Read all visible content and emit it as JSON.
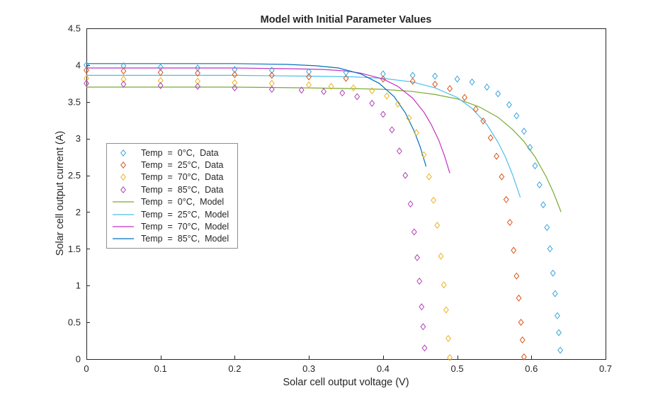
{
  "figure": {
    "title": "Model with Initial Parameter Values",
    "xlabel": "Solar cell output voltage (V)",
    "ylabel": "Solar cell output current (A)"
  },
  "chart_data": {
    "type": "scatter",
    "title": "Model with Initial Parameter Values",
    "xlabel": "Solar cell output voltage (V)",
    "ylabel": "Solar cell output current (A)",
    "xlim": [
      0,
      0.7
    ],
    "ylim": [
      0,
      4.5
    ],
    "x_ticks": [
      0,
      0.1,
      0.2,
      0.3,
      0.4,
      0.5,
      0.6,
      0.7
    ],
    "x_tick_labels": [
      "0",
      "0.1",
      "0.2",
      "0.3",
      "0.4",
      "0.5",
      "0.6",
      "0.7"
    ],
    "y_ticks": [
      0,
      0.5,
      1,
      1.5,
      2,
      2.5,
      3,
      3.5,
      4,
      4.5
    ],
    "y_tick_labels": [
      "0",
      "0.5",
      "1",
      "1.5",
      "2",
      "2.5",
      "3",
      "3.5",
      "4",
      "4.5"
    ],
    "grid": false,
    "axis_color": "#262626",
    "background_color": "#ffffff",
    "legend_position": "west-inside",
    "series": [
      {
        "id": "data-0c",
        "name": "Temp  =  0°C,  Data",
        "type": "scatter",
        "marker": "diamond",
        "color": "#39a3dc",
        "points": [
          [
            0,
            4.0
          ],
          [
            0.05,
            3.99
          ],
          [
            0.1,
            3.97
          ],
          [
            0.15,
            3.96
          ],
          [
            0.2,
            3.94
          ],
          [
            0.25,
            3.93
          ],
          [
            0.3,
            3.91
          ],
          [
            0.35,
            3.9
          ],
          [
            0.4,
            3.88
          ],
          [
            0.44,
            3.86
          ],
          [
            0.47,
            3.85
          ],
          [
            0.5,
            3.81
          ],
          [
            0.52,
            3.77
          ],
          [
            0.54,
            3.7
          ],
          [
            0.555,
            3.61
          ],
          [
            0.57,
            3.46
          ],
          [
            0.58,
            3.31
          ],
          [
            0.59,
            3.1
          ],
          [
            0.598,
            2.88
          ],
          [
            0.605,
            2.63
          ],
          [
            0.611,
            2.37
          ],
          [
            0.616,
            2.1
          ],
          [
            0.621,
            1.79
          ],
          [
            0.625,
            1.5
          ],
          [
            0.629,
            1.17
          ],
          [
            0.632,
            0.89
          ],
          [
            0.635,
            0.59
          ],
          [
            0.637,
            0.36
          ],
          [
            0.639,
            0.12
          ]
        ]
      },
      {
        "id": "data-25c",
        "name": "Temp  =  25°C,  Data",
        "type": "scatter",
        "marker": "diamond",
        "color": "#d95319",
        "points": [
          [
            0,
            3.93
          ],
          [
            0.05,
            3.92
          ],
          [
            0.1,
            3.9
          ],
          [
            0.15,
            3.89
          ],
          [
            0.2,
            3.87
          ],
          [
            0.25,
            3.86
          ],
          [
            0.3,
            3.84
          ],
          [
            0.35,
            3.82
          ],
          [
            0.4,
            3.81
          ],
          [
            0.44,
            3.78
          ],
          [
            0.47,
            3.74
          ],
          [
            0.49,
            3.68
          ],
          [
            0.51,
            3.56
          ],
          [
            0.525,
            3.4
          ],
          [
            0.535,
            3.24
          ],
          [
            0.545,
            3.01
          ],
          [
            0.553,
            2.76
          ],
          [
            0.56,
            2.48
          ],
          [
            0.566,
            2.17
          ],
          [
            0.571,
            1.86
          ],
          [
            0.576,
            1.48
          ],
          [
            0.58,
            1.13
          ],
          [
            0.583,
            0.83
          ],
          [
            0.586,
            0.5
          ],
          [
            0.588,
            0.26
          ],
          [
            0.59,
            0.03
          ]
        ]
      },
      {
        "id": "data-70c",
        "name": "Temp  =  70°C,  Data",
        "type": "scatter",
        "marker": "diamond",
        "color": "#edb120",
        "points": [
          [
            0,
            3.82
          ],
          [
            0.05,
            3.81
          ],
          [
            0.1,
            3.79
          ],
          [
            0.15,
            3.78
          ],
          [
            0.2,
            3.76
          ],
          [
            0.25,
            3.75
          ],
          [
            0.3,
            3.73
          ],
          [
            0.33,
            3.71
          ],
          [
            0.36,
            3.69
          ],
          [
            0.385,
            3.65
          ],
          [
            0.405,
            3.58
          ],
          [
            0.42,
            3.47
          ],
          [
            0.435,
            3.28
          ],
          [
            0.445,
            3.08
          ],
          [
            0.455,
            2.78
          ],
          [
            0.462,
            2.48
          ],
          [
            0.468,
            2.16
          ],
          [
            0.473,
            1.82
          ],
          [
            0.478,
            1.4
          ],
          [
            0.482,
            1.01
          ],
          [
            0.485,
            0.67
          ],
          [
            0.488,
            0.28
          ],
          [
            0.49,
            0.02
          ]
        ]
      },
      {
        "id": "data-85c",
        "name": "Temp  =  85°C,  Data",
        "type": "scatter",
        "marker": "diamond",
        "color": "#b040b8",
        "points": [
          [
            0,
            3.75
          ],
          [
            0.05,
            3.74
          ],
          [
            0.1,
            3.72
          ],
          [
            0.15,
            3.71
          ],
          [
            0.2,
            3.69
          ],
          [
            0.25,
            3.67
          ],
          [
            0.29,
            3.66
          ],
          [
            0.32,
            3.64
          ],
          [
            0.345,
            3.62
          ],
          [
            0.365,
            3.57
          ],
          [
            0.385,
            3.48
          ],
          [
            0.4,
            3.33
          ],
          [
            0.412,
            3.12
          ],
          [
            0.422,
            2.83
          ],
          [
            0.43,
            2.5
          ],
          [
            0.437,
            2.11
          ],
          [
            0.442,
            1.73
          ],
          [
            0.446,
            1.38
          ],
          [
            0.449,
            1.06
          ],
          [
            0.452,
            0.71
          ],
          [
            0.454,
            0.44
          ],
          [
            0.456,
            0.15
          ]
        ]
      },
      {
        "id": "model-0c",
        "name": "Temp  =  0°C,  Model",
        "type": "line",
        "color": "#77ac30",
        "points": [
          [
            0,
            3.7
          ],
          [
            0.1,
            3.7
          ],
          [
            0.2,
            3.7
          ],
          [
            0.3,
            3.69
          ],
          [
            0.36,
            3.68
          ],
          [
            0.4,
            3.67
          ],
          [
            0.44,
            3.64
          ],
          [
            0.47,
            3.6
          ],
          [
            0.5,
            3.54
          ],
          [
            0.53,
            3.43
          ],
          [
            0.555,
            3.29
          ],
          [
            0.575,
            3.12
          ],
          [
            0.59,
            2.96
          ],
          [
            0.605,
            2.75
          ],
          [
            0.62,
            2.48
          ],
          [
            0.63,
            2.26
          ],
          [
            0.64,
            2.0
          ]
        ]
      },
      {
        "id": "model-25c",
        "name": "Temp  =  25°C,  Model",
        "type": "line",
        "color": "#4dbeee",
        "points": [
          [
            0,
            3.86
          ],
          [
            0.1,
            3.86
          ],
          [
            0.2,
            3.86
          ],
          [
            0.3,
            3.85
          ],
          [
            0.36,
            3.84
          ],
          [
            0.4,
            3.82
          ],
          [
            0.44,
            3.77
          ],
          [
            0.47,
            3.69
          ],
          [
            0.5,
            3.56
          ],
          [
            0.52,
            3.41
          ],
          [
            0.54,
            3.19
          ],
          [
            0.555,
            2.95
          ],
          [
            0.565,
            2.75
          ],
          [
            0.575,
            2.5
          ],
          [
            0.585,
            2.2
          ]
        ]
      },
      {
        "id": "model-70c",
        "name": "Temp  =  70°C,  Model",
        "type": "line",
        "color": "#c231c2",
        "points": [
          [
            0,
            3.96
          ],
          [
            0.1,
            3.96
          ],
          [
            0.2,
            3.96
          ],
          [
            0.28,
            3.95
          ],
          [
            0.32,
            3.94
          ],
          [
            0.35,
            3.92
          ],
          [
            0.37,
            3.89
          ],
          [
            0.4,
            3.81
          ],
          [
            0.42,
            3.71
          ],
          [
            0.44,
            3.55
          ],
          [
            0.455,
            3.36
          ],
          [
            0.465,
            3.19
          ],
          [
            0.475,
            2.98
          ],
          [
            0.483,
            2.76
          ],
          [
            0.49,
            2.53
          ]
        ]
      },
      {
        "id": "model-85c",
        "name": "Temp  =  85°C,  Model",
        "type": "line",
        "color": "#0072bd",
        "points": [
          [
            0,
            4.02
          ],
          [
            0.1,
            4.02
          ],
          [
            0.2,
            4.02
          ],
          [
            0.27,
            4.01
          ],
          [
            0.31,
            3.99
          ],
          [
            0.34,
            3.96
          ],
          [
            0.37,
            3.88
          ],
          [
            0.395,
            3.75
          ],
          [
            0.415,
            3.57
          ],
          [
            0.43,
            3.35
          ],
          [
            0.442,
            3.1
          ],
          [
            0.45,
            2.89
          ],
          [
            0.458,
            2.62
          ]
        ]
      }
    ]
  }
}
